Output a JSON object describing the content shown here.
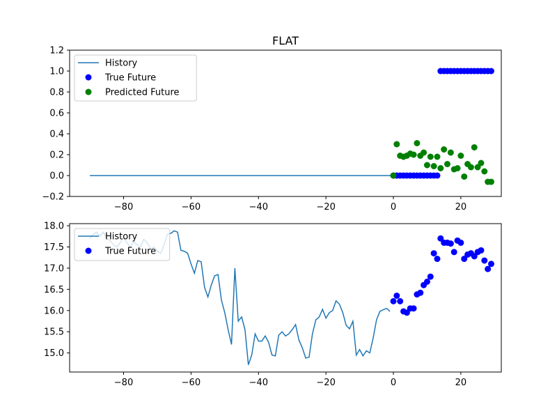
{
  "figure_title": "FLAT",
  "chart_data": [
    {
      "type": "line+scatter",
      "title": "FLAT",
      "xlabel": "",
      "ylabel": "",
      "xlim": [
        -96,
        32
      ],
      "ylim": [
        -0.2,
        1.2
      ],
      "xticks": [
        -80,
        -60,
        -40,
        -20,
        0,
        20
      ],
      "yticks": [
        -0.2,
        0.0,
        0.2,
        0.4,
        0.6,
        0.8,
        1.0,
        1.2
      ],
      "ytick_labels": [
        "−0.2",
        "0.0",
        "0.2",
        "0.4",
        "0.6",
        "0.8",
        "1.0",
        "1.2"
      ],
      "legend_position": "top-left",
      "grid": false,
      "series": [
        {
          "name": "History",
          "kind": "line",
          "color": "#1f77b4",
          "x": [
            -90,
            0
          ],
          "y": [
            0,
            0
          ]
        },
        {
          "name": "True Future",
          "kind": "scatter",
          "color": "#0000ff",
          "x": [
            0,
            1,
            2,
            3,
            4,
            5,
            6,
            7,
            8,
            9,
            10,
            11,
            12,
            13,
            14,
            15,
            16,
            17,
            18,
            19,
            20,
            21,
            22,
            23,
            24,
            25,
            26,
            27,
            28,
            29
          ],
          "y": [
            0,
            0,
            0,
            0,
            0,
            0,
            0,
            0,
            0,
            0,
            0,
            0,
            0,
            0,
            1,
            1,
            1,
            1,
            1,
            1,
            1,
            1,
            1,
            1,
            1,
            1,
            1,
            1,
            1,
            1
          ]
        },
        {
          "name": "Predicted Future",
          "kind": "scatter",
          "color": "#008000",
          "x": [
            0,
            1,
            2,
            3,
            4,
            5,
            6,
            7,
            8,
            9,
            10,
            11,
            12,
            13,
            14,
            15,
            16,
            17,
            18,
            19,
            20,
            21,
            22,
            23,
            24,
            25,
            26,
            27,
            28,
            29
          ],
          "y": [
            0.0,
            0.3,
            0.19,
            0.18,
            0.19,
            0.21,
            0.2,
            0.31,
            0.19,
            0.22,
            0.1,
            0.18,
            0.09,
            0.18,
            0.07,
            0.25,
            0.11,
            0.22,
            0.06,
            0.07,
            0.19,
            -0.01,
            0.11,
            0.08,
            0.27,
            0.08,
            0.12,
            0.04,
            -0.06,
            -0.06
          ]
        }
      ]
    },
    {
      "type": "line+scatter",
      "title": "",
      "xlabel": "",
      "ylabel": "",
      "xlim": [
        -96,
        32
      ],
      "ylim": [
        14.55,
        18.05
      ],
      "xticks": [
        -80,
        -60,
        -40,
        -20,
        0,
        20
      ],
      "yticks": [
        15.0,
        15.5,
        16.0,
        16.5,
        17.0,
        17.5,
        18.0
      ],
      "ytick_labels": [
        "15.0",
        "15.5",
        "16.0",
        "16.5",
        "17.0",
        "17.5",
        "18.0"
      ],
      "legend_position": "top-left",
      "grid": false,
      "series": [
        {
          "name": "History",
          "kind": "line",
          "color": "#1f77b4",
          "x": [
            -90,
            -89,
            -88,
            -87,
            -86,
            -85,
            -84,
            -83,
            -82,
            -81,
            -80,
            -79,
            -78,
            -77,
            -76,
            -75,
            -74,
            -73,
            -72,
            -71,
            -70,
            -69,
            -68,
            -67,
            -66,
            -65,
            -64,
            -63,
            -62,
            -61,
            -60,
            -59,
            -58,
            -57,
            -56,
            -55,
            -54,
            -53,
            -52,
            -51,
            -50,
            -49,
            -48,
            -47,
            -46,
            -45,
            -44,
            -43,
            -42,
            -41,
            -40,
            -39,
            -38,
            -37,
            -36,
            -35,
            -34,
            -33,
            -32,
            -31,
            -30,
            -29,
            -28,
            -27,
            -26,
            -25,
            -24,
            -23,
            -22,
            -21,
            -20,
            -19,
            -18,
            -17,
            -16,
            -15,
            -14,
            -13,
            -12,
            -11,
            -10,
            -9,
            -8,
            -7,
            -6,
            -5,
            -4,
            -3,
            -2,
            -1
          ],
          "y": [
            17.7,
            17.8,
            17.85,
            17.75,
            17.85,
            17.7,
            17.65,
            17.55,
            17.5,
            17.6,
            17.72,
            17.6,
            17.5,
            17.62,
            17.55,
            17.5,
            17.68,
            17.6,
            17.45,
            17.5,
            17.4,
            17.35,
            17.55,
            17.8,
            17.82,
            17.88,
            17.85,
            17.42,
            17.4,
            17.35,
            17.1,
            16.88,
            17.18,
            17.15,
            16.55,
            16.32,
            16.6,
            16.82,
            16.85,
            16.25,
            15.95,
            15.55,
            15.2,
            17.0,
            15.75,
            15.85,
            15.55,
            14.72,
            14.95,
            15.45,
            15.28,
            15.28,
            15.4,
            15.25,
            14.95,
            14.93,
            15.42,
            15.5,
            15.4,
            15.45,
            15.55,
            15.67,
            15.3,
            15.12,
            14.88,
            14.9,
            15.45,
            15.78,
            15.85,
            16.03,
            15.82,
            15.95,
            16.0,
            16.23,
            16.15,
            15.95,
            15.65,
            15.57,
            15.75,
            14.95,
            15.08,
            14.93,
            15.05,
            15.0,
            15.35,
            15.78,
            15.98,
            16.02,
            16.05,
            15.98
          ]
        },
        {
          "name": "True Future",
          "kind": "scatter",
          "color": "#0000ff",
          "x": [
            0,
            1,
            2,
            3,
            4,
            5,
            6,
            7,
            8,
            9,
            10,
            11,
            12,
            13,
            14,
            15,
            16,
            17,
            18,
            19,
            20,
            21,
            22,
            23,
            24,
            25,
            26,
            27,
            28,
            29
          ],
          "y": [
            16.22,
            16.35,
            16.22,
            15.98,
            15.95,
            16.05,
            16.05,
            16.38,
            16.42,
            16.6,
            16.68,
            16.8,
            17.35,
            17.22,
            17.7,
            17.6,
            17.6,
            17.58,
            17.38,
            17.65,
            17.6,
            17.22,
            17.32,
            17.35,
            17.28,
            17.38,
            17.42,
            17.18,
            16.98,
            17.1
          ]
        }
      ]
    }
  ]
}
